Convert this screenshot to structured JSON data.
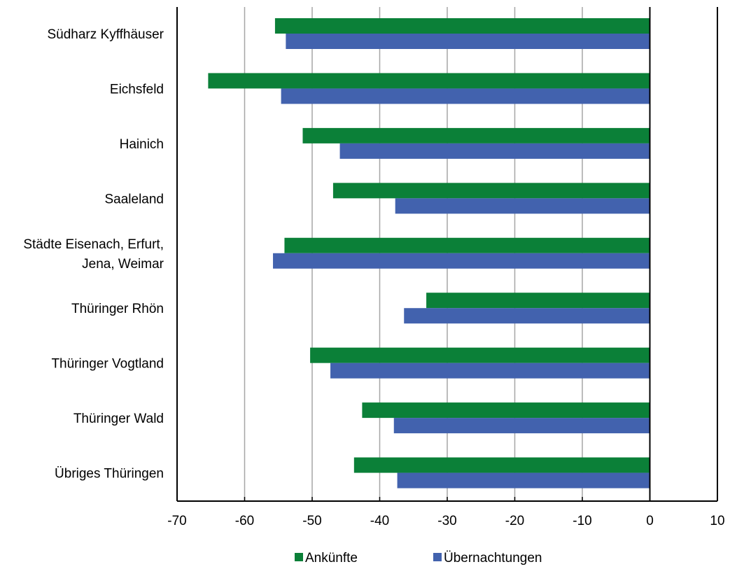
{
  "chart_data": {
    "type": "bar",
    "orientation": "horizontal",
    "categories": [
      [
        "Südharz Kyffhäuser"
      ],
      [
        "Eichsfeld"
      ],
      [
        "Hainich"
      ],
      [
        "Saaleland"
      ],
      [
        "Städte Eisenach, Erfurt,",
        "Jena, Weimar"
      ],
      [
        "Thüringer Rhön"
      ],
      [
        "Thüringer Vogtland"
      ],
      [
        "Thüringer Wald"
      ],
      [
        "Übriges Thüringen"
      ]
    ],
    "series": [
      {
        "name": "Ankünfte",
        "color": "#0b8038",
        "values": [
          -55.5,
          -65.4,
          -51.4,
          -46.9,
          -54.1,
          -33.1,
          -50.3,
          -42.6,
          -43.8
        ]
      },
      {
        "name": "Übernachtungen",
        "color": "#4262ae",
        "values": [
          -53.9,
          -54.6,
          -45.9,
          -37.7,
          -55.8,
          -36.4,
          -47.3,
          -37.9,
          -37.4
        ]
      }
    ],
    "xlim": [
      -70,
      10
    ],
    "xticks": [
      -70,
      -60,
      -50,
      -40,
      -30,
      -20,
      -10,
      0,
      10
    ],
    "grid": true,
    "legend": "bottom",
    "title": "",
    "xlabel": "",
    "ylabel": ""
  }
}
